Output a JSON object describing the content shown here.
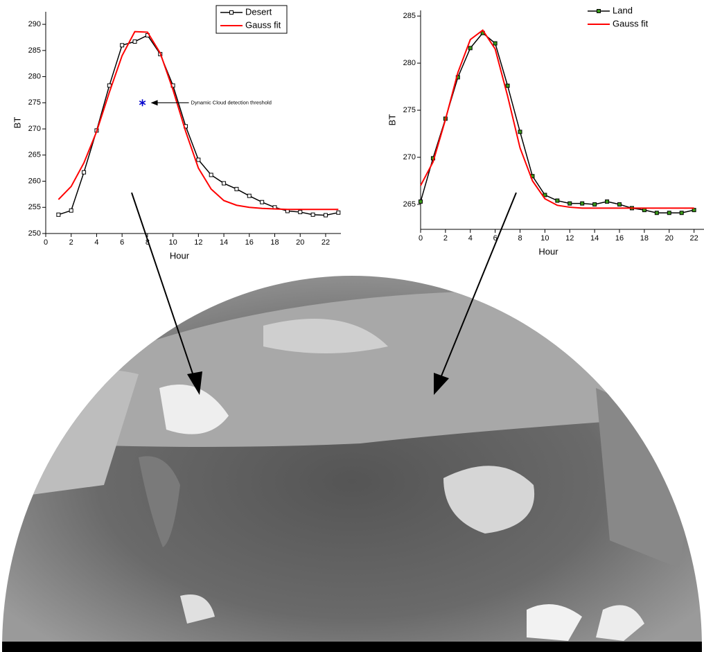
{
  "chart_data": [
    {
      "type": "line",
      "xlabel": "Hour",
      "ylabel": "BT",
      "x": [
        1,
        2,
        3,
        4,
        5,
        6,
        7,
        8,
        9,
        10,
        11,
        12,
        13,
        14,
        15,
        16,
        17,
        18,
        19,
        20,
        21,
        22,
        23
      ],
      "series": [
        {
          "name": "Desert",
          "color": "#000000",
          "marker_color": "#ffffff",
          "values": [
            253.6,
            254.4,
            261.7,
            269.7,
            278.3,
            286,
            286.7,
            287.9,
            284.3,
            278.3,
            270.5,
            264.1,
            261.2,
            259.6,
            258.5,
            257.2,
            256,
            255,
            254.3,
            254.1,
            253.6,
            253.5,
            254
          ]
        },
        {
          "name": "Gauss fit",
          "color": "#ff0000",
          "values": [
            256.5,
            259,
            263.5,
            269.5,
            277,
            284,
            288.6,
            288.5,
            284.5,
            277.5,
            269.5,
            262.5,
            258.5,
            256.3,
            255.4,
            255,
            254.8,
            254.7,
            254.6,
            254.6,
            254.6,
            254.6,
            254.6
          ]
        }
      ],
      "annotation": {
        "text": "Dynamic  Cloud detection threshold",
        "x": 7.6,
        "y": 275,
        "color": "#0000cc"
      },
      "xlim": [
        0,
        23.2
      ],
      "xticks": [
        0,
        2,
        4,
        6,
        8,
        10,
        12,
        14,
        16,
        18,
        20,
        22
      ],
      "ylim": [
        250,
        292.4
      ],
      "yticks": [
        250,
        255,
        260,
        265,
        270,
        275,
        280,
        285,
        290
      ],
      "legend": "top-right",
      "legend_box": true
    },
    {
      "type": "line",
      "xlabel": "Hour",
      "ylabel": "BT",
      "x": [
        0,
        1,
        2,
        3,
        4,
        5,
        6,
        7,
        8,
        9,
        10,
        11,
        12,
        13,
        14,
        15,
        16,
        17,
        18,
        19,
        20,
        21,
        22
      ],
      "series": [
        {
          "name": "Land",
          "color": "#000000",
          "marker_color": "#3a9a1a",
          "values": [
            265.3,
            269.9,
            274.1,
            278.5,
            281.6,
            283.2,
            282.1,
            277.6,
            272.7,
            268,
            266,
            265.4,
            265.1,
            265.1,
            265,
            265.3,
            265,
            264.6,
            264.4,
            264.1,
            264.1,
            264.1,
            264.4
          ]
        },
        {
          "name": "Gauss fit",
          "color": "#ff0000",
          "values": [
            267,
            269.5,
            274,
            279,
            282.5,
            283.5,
            281.5,
            276.5,
            271,
            267.5,
            265.6,
            264.9,
            264.7,
            264.6,
            264.6,
            264.6,
            264.6,
            264.6,
            264.6,
            264.6,
            264.6,
            264.6,
            264.6
          ]
        }
      ],
      "xlim": [
        0,
        22.8
      ],
      "xticks": [
        0,
        2,
        4,
        6,
        8,
        10,
        12,
        14,
        16,
        18,
        20,
        22
      ],
      "ylim": [
        262.35,
        285.6
      ],
      "yticks": [
        265,
        270,
        275,
        280,
        285
      ],
      "legend": "top-right",
      "legend_box": false
    }
  ]
}
